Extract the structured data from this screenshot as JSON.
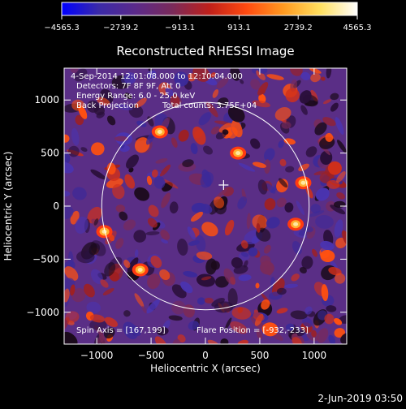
{
  "colorbar": {
    "tick_labels": [
      "−4565.3",
      "−2739.2",
      "−913.1",
      "913.1",
      "2739.2",
      "4565.3"
    ],
    "range": [
      -4565.3,
      4565.3
    ],
    "colors": [
      "#0000ff",
      "#3a2aa8",
      "#5b2a8a",
      "#7a2a5a",
      "#c0201a",
      "#ff4a10",
      "#ff9a20",
      "#ffe060",
      "#ffffff"
    ]
  },
  "chart_data": {
    "type": "heatmap",
    "title": "Reconstructed RHESSI Image",
    "xlabel": "Heliocentric X (arcsec)",
    "ylabel": "Heliocentric Y (arcsec)",
    "xlim": [
      -1300,
      1300
    ],
    "ylim": [
      -1300,
      1300
    ],
    "xticks": [
      -1000,
      -500,
      0,
      500,
      1000
    ],
    "yticks": [
      -1000,
      -500,
      0,
      500,
      1000
    ],
    "annotations": [
      "4-Sep-2014 12:01:08.000 to 12:10:04.000",
      "Detectors: 7F 8F 9F, Att 0",
      "Energy Range: 6.0 - 25.0 keV",
      "Back Projection",
      "Total counts: 3.75E+04"
    ],
    "spin_axis_label": "Spin Axis = [167,199]",
    "flare_position_label": "Flare Position = [-932,-233]",
    "spin_axis": [
      167,
      199
    ],
    "solar_limb_radius": 954,
    "bright_sources": [
      {
        "x": 900,
        "y": 220
      },
      {
        "x": 830,
        "y": -170
      },
      {
        "x": -930,
        "y": -240
      },
      {
        "x": -420,
        "y": 700
      },
      {
        "x": 300,
        "y": 500
      },
      {
        "x": -600,
        "y": -600
      }
    ]
  },
  "footer": {
    "timestamp": "2-Jun-2019 03:50"
  }
}
